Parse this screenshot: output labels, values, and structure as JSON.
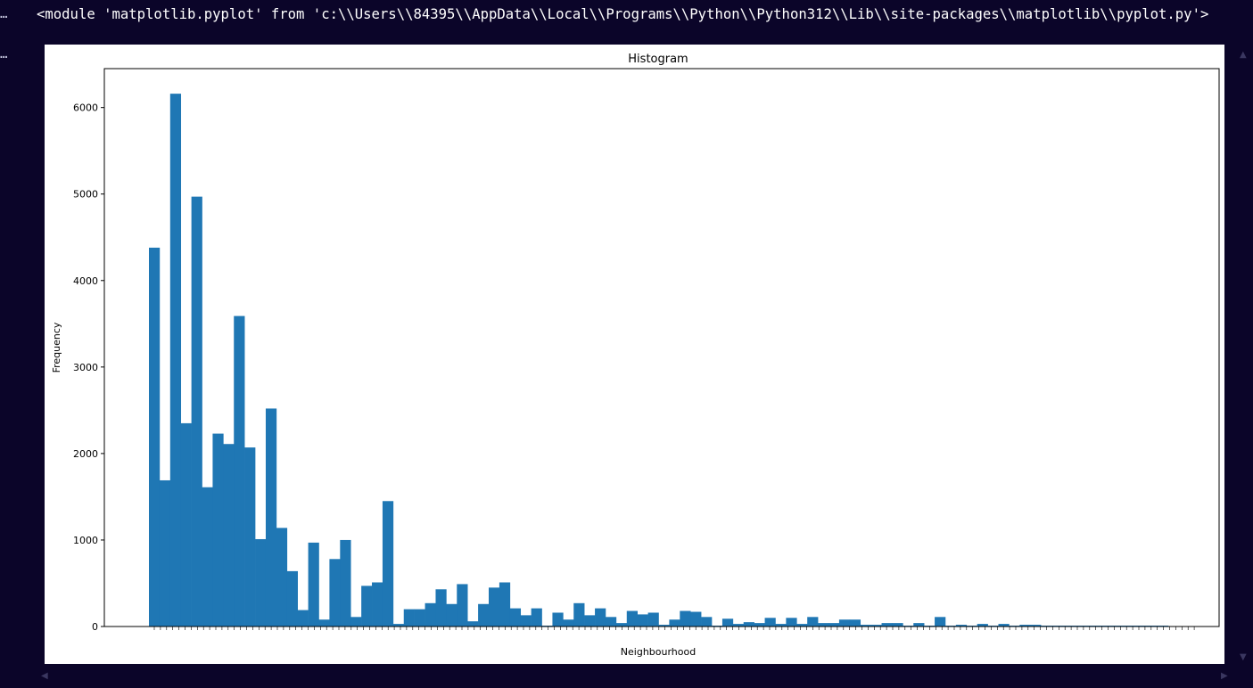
{
  "output": {
    "prompt_marker_1": "…",
    "prompt_marker_2": "…",
    "module_repr": "<module 'matplotlib.pyplot' from 'c:\\\\Users\\\\84395\\\\AppData\\\\Local\\\\Programs\\\\Python\\\\Python312\\\\Lib\\\\site-packages\\\\matplotlib\\\\pyplot.py'>"
  },
  "colors": {
    "bar": "#1f77b4",
    "background": "#0b0529"
  },
  "chart_data": {
    "type": "bar",
    "title": "Histogram",
    "xlabel": "Neighbourhood",
    "ylabel": "Frequency",
    "ylim": [
      0,
      6450
    ],
    "yticks": [
      0,
      1000,
      2000,
      3000,
      4000,
      5000,
      6000
    ],
    "grid": false,
    "values": [
      4380,
      1690,
      6160,
      2350,
      4970,
      1610,
      2230,
      2110,
      3590,
      2070,
      1010,
      2520,
      1140,
      640,
      190,
      970,
      80,
      780,
      1000,
      110,
      470,
      510,
      1450,
      30,
      200,
      200,
      270,
      430,
      260,
      490,
      60,
      260,
      450,
      510,
      210,
      130,
      210,
      10,
      160,
      80,
      270,
      130,
      210,
      110,
      40,
      180,
      140,
      160,
      20,
      80,
      180,
      170,
      110,
      10,
      90,
      30,
      50,
      40,
      100,
      30,
      100,
      30,
      110,
      40,
      40,
      80,
      80,
      20,
      20,
      40,
      40,
      10,
      40,
      10,
      110,
      10,
      20,
      10,
      30,
      10,
      30,
      10,
      20,
      20,
      10,
      10,
      10,
      10,
      10,
      10,
      10,
      10,
      10,
      10,
      10,
      10
    ]
  }
}
